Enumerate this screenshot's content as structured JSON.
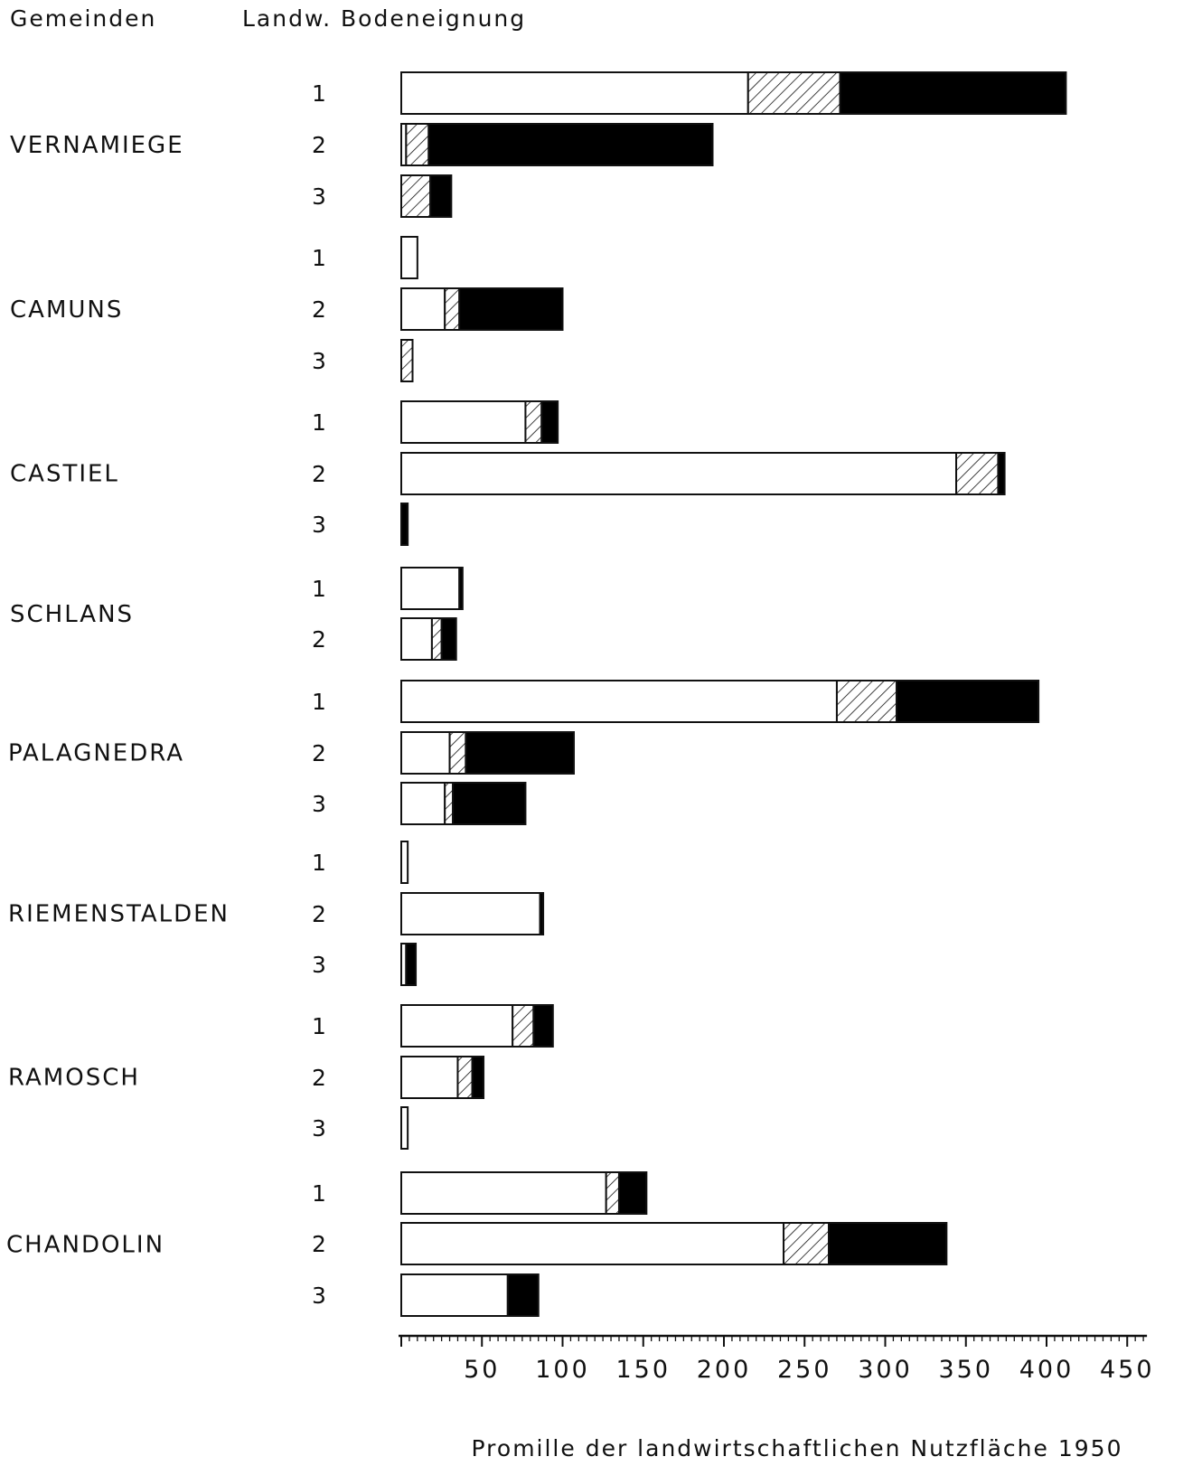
{
  "header": {
    "col1": "Gemeinden",
    "col2": "Landw. Bodeneignung"
  },
  "chart_data": {
    "type": "bar",
    "orientation": "horizontal",
    "stacked": true,
    "xlabel": "Promille der landwirtschaftlichen Nutzfläche 1950",
    "xlim": [
      0,
      460
    ],
    "x_ticks": [
      "50",
      "100",
      "150",
      "200",
      "250",
      "300",
      "350",
      "400",
      "450"
    ],
    "segment_patterns": [
      "white",
      "hatched",
      "black"
    ],
    "colors": {
      "white": "#ffffff",
      "black": "#000000",
      "outline": "#111111"
    },
    "groups": [
      {
        "name": "VERNAMIEGE",
        "rows": [
          {
            "rank": "1",
            "values": [
              215,
              57,
              140
            ]
          },
          {
            "rank": "2",
            "values": [
              3,
              14,
              176
            ]
          },
          {
            "rank": "3",
            "values": [
              0,
              18,
              13
            ]
          }
        ]
      },
      {
        "name": "CAMUNS",
        "rows": [
          {
            "rank": "1",
            "values": [
              10,
              0,
              0
            ]
          },
          {
            "rank": "2",
            "values": [
              27,
              9,
              64
            ]
          },
          {
            "rank": "3",
            "values": [
              0,
              7,
              0
            ]
          }
        ]
      },
      {
        "name": "CASTIEL",
        "rows": [
          {
            "rank": "1",
            "values": [
              77,
              10,
              10
            ]
          },
          {
            "rank": "2",
            "values": [
              344,
              26,
              4
            ]
          },
          {
            "rank": "3",
            "values": [
              0,
              0,
              4
            ]
          }
        ]
      },
      {
        "name": "SCHLANS",
        "rows": [
          {
            "rank": "1",
            "values": [
              36,
              0,
              2
            ]
          },
          {
            "rank": "2",
            "values": [
              19,
              6,
              9
            ]
          }
        ]
      },
      {
        "name": "PALAGNEDRA",
        "rows": [
          {
            "rank": "1",
            "values": [
              270,
              37,
              88
            ]
          },
          {
            "rank": "2",
            "values": [
              30,
              10,
              67
            ]
          },
          {
            "rank": "3",
            "values": [
              27,
              5,
              45
            ]
          }
        ]
      },
      {
        "name": "RIEMENSTALDEN",
        "rows": [
          {
            "rank": "1",
            "values": [
              4,
              0,
              0
            ]
          },
          {
            "rank": "2",
            "values": [
              86,
              0,
              2
            ]
          },
          {
            "rank": "3",
            "values": [
              3,
              0,
              6
            ]
          }
        ]
      },
      {
        "name": "RAMOSCH",
        "rows": [
          {
            "rank": "1",
            "values": [
              69,
              13,
              12
            ]
          },
          {
            "rank": "2",
            "values": [
              35,
              9,
              7
            ]
          },
          {
            "rank": "3",
            "values": [
              4,
              0,
              0
            ]
          }
        ]
      },
      {
        "name": "CHANDOLIN",
        "rows": [
          {
            "rank": "1",
            "values": [
              127,
              8,
              17
            ]
          },
          {
            "rank": "2",
            "values": [
              237,
              28,
              73
            ]
          },
          {
            "rank": "3",
            "values": [
              66,
              0,
              19
            ]
          }
        ]
      }
    ]
  }
}
